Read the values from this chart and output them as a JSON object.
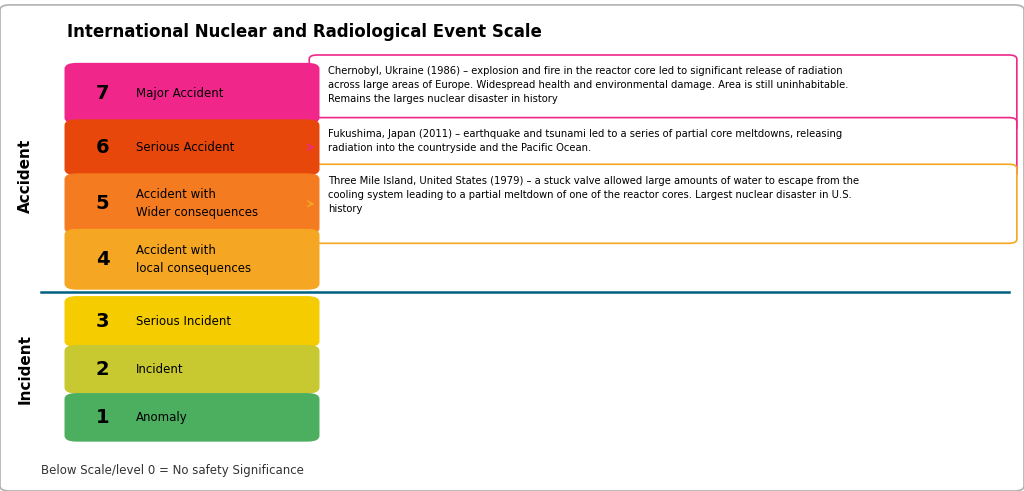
{
  "title": "International Nuclear and Radiological Event Scale",
  "title_fontsize": 12,
  "background_color": "#ffffff",
  "outer_border_color": "#b0b0b0",
  "levels": [
    {
      "number": 7,
      "label": "Major Accident",
      "color": "#F0268A",
      "text_color": "#000000",
      "two_line": false
    },
    {
      "number": 6,
      "label": "Serious Accident",
      "color": "#E8470C",
      "text_color": "#000000",
      "two_line": false
    },
    {
      "number": 5,
      "label": "Accident with\nWider consequences",
      "color": "#F47B1F",
      "text_color": "#000000",
      "two_line": true
    },
    {
      "number": 4,
      "label": "Accident with\nlocal consequences",
      "color": "#F5A623",
      "text_color": "#000000",
      "two_line": true
    },
    {
      "number": 3,
      "label": "Serious Incident",
      "color": "#F5CC00",
      "text_color": "#000000",
      "two_line": false
    },
    {
      "number": 2,
      "label": "Incident",
      "color": "#C8C830",
      "text_color": "#000000",
      "two_line": false
    },
    {
      "number": 1,
      "label": "Anomaly",
      "color": "#4CAF60",
      "text_color": "#000000",
      "two_line": false
    }
  ],
  "annotations": [
    {
      "level": 7,
      "text": "Chernobyl, Ukraine (1986) – explosion and fire in the reactor core led to significant release of radiation\nacross large areas of Europe. Widespread health and environmental damage. Area is still uninhabitable.\nRemains the larges nuclear disaster in history",
      "border_color": "#F0268A",
      "bg_color": "#ffffff",
      "arrow_color": "#F0268A"
    },
    {
      "level": 6,
      "text": "Fukushima, Japan (2011) – earthquake and tsunami led to a series of partial core meltdowns, releasing\nradiation into the countryside and the Pacific Ocean.",
      "border_color": "#F0268A",
      "bg_color": "#ffffff",
      "arrow_color": "#F0268A"
    },
    {
      "level": 5,
      "text": "Three Mile Island, United States (1979) – a stuck valve allowed large amounts of water to escape from the\ncooling system leading to a partial meltdown of one of the reactor cores. Largest nuclear disaster in U.S.\nhistory",
      "border_color": "#F5A623",
      "bg_color": "#ffffff",
      "arrow_color": "#F5A623"
    }
  ],
  "accident_label": "Accident",
  "incident_label": "Incident",
  "footer_text": "Below Scale/level 0 = No safety Significance",
  "divider_color": "#006080"
}
